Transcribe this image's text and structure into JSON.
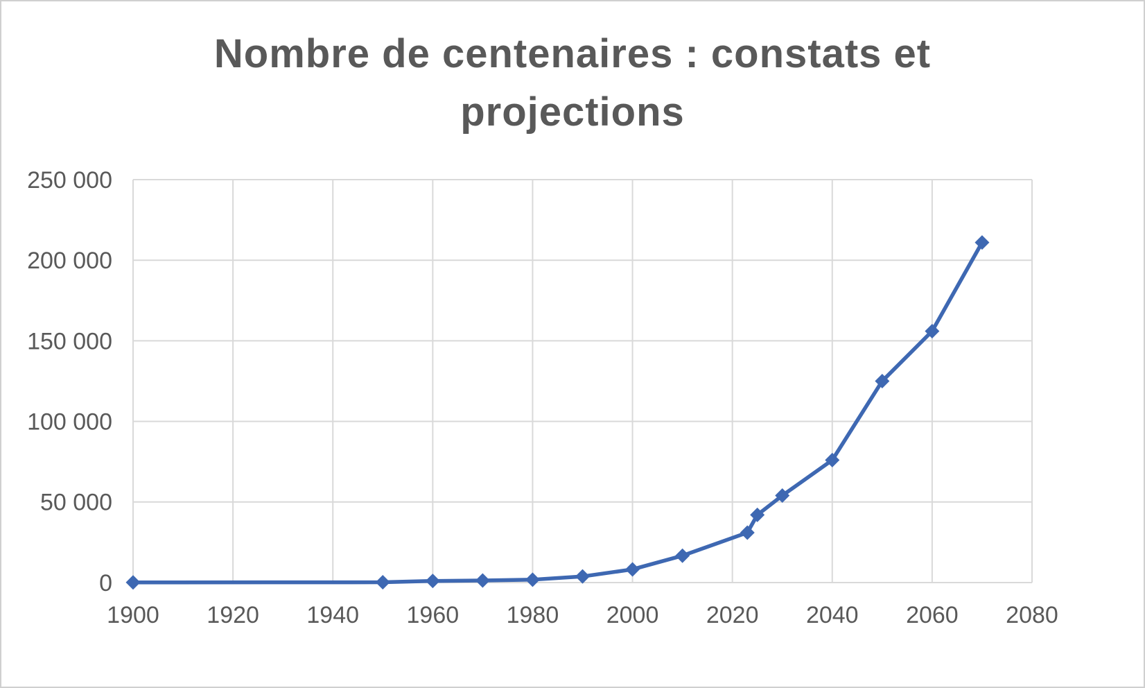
{
  "chart_data": {
    "type": "line",
    "title": "Nombre de centenaires : constats et projections",
    "series": [
      {
        "name": "Nombre de centenaires",
        "x": [
          1900,
          1950,
          1960,
          1970,
          1980,
          1990,
          2000,
          2010,
          2023,
          2025,
          2030,
          2040,
          2050,
          2060,
          2070
        ],
        "y": [
          100,
          200,
          1000,
          1300,
          1800,
          3800,
          8200,
          16700,
          31000,
          42000,
          54000,
          76000,
          125000,
          156000,
          211000
        ]
      }
    ],
    "xlim": [
      1900,
      2080
    ],
    "ylim": [
      0,
      250000
    ],
    "x_ticks": [
      1900,
      1920,
      1940,
      1960,
      1980,
      2000,
      2020,
      2040,
      2060,
      2080
    ],
    "x_tick_labels": [
      "1900",
      "1920",
      "1940",
      "1960",
      "1980",
      "2000",
      "2020",
      "2040",
      "2060",
      "2080"
    ],
    "y_ticks": [
      0,
      50000,
      100000,
      150000,
      200000,
      250000
    ],
    "y_tick_labels": [
      "0",
      "50 000",
      "100 000",
      "150 000",
      "200 000",
      "250 000"
    ],
    "grid": true,
    "legend_position": "none",
    "marker": "diamond",
    "line_color": "#3E68B2",
    "grid_color": "#D9D9D9",
    "text_color": "#595959",
    "background_color": "#FFFFFF"
  }
}
